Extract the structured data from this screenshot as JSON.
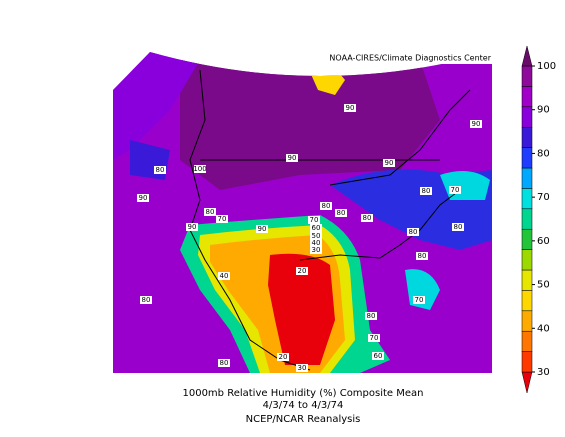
{
  "header": {
    "credit": "NOAA-CIRES/Climate Diagnostics Center"
  },
  "caption": {
    "line1": "1000mb Relative Humidity (%) Composite Mean",
    "line2": "4/3/74  to 4/3/74",
    "line3": "NCEP/NCAR Reanalysis"
  },
  "colorbar": {
    "range": [
      30,
      100
    ],
    "ticks": [
      30,
      40,
      50,
      60,
      70,
      80,
      90,
      100
    ],
    "colors": [
      "#e8000b",
      "#ff3a00",
      "#ff7700",
      "#ffaa00",
      "#ffd700",
      "#e6e600",
      "#9bd900",
      "#22c43a",
      "#00d68f",
      "#00e0e0",
      "#00a8ff",
      "#1f3cff",
      "#3a1ad8",
      "#8a00dc",
      "#a000c8",
      "#8e0a9a",
      "#6a0a6a"
    ]
  },
  "contour_labels": [
    "90",
    "90",
    "90",
    "90",
    "100",
    "80",
    "90",
    "80",
    "70",
    "80",
    "80",
    "80",
    "90",
    "70",
    "90",
    "80",
    "70",
    "60",
    "50",
    "40",
    "30",
    "80",
    "80",
    "40",
    "80",
    "20",
    "80",
    "70",
    "80",
    "20",
    "80",
    "70",
    "60",
    "30"
  ]
}
